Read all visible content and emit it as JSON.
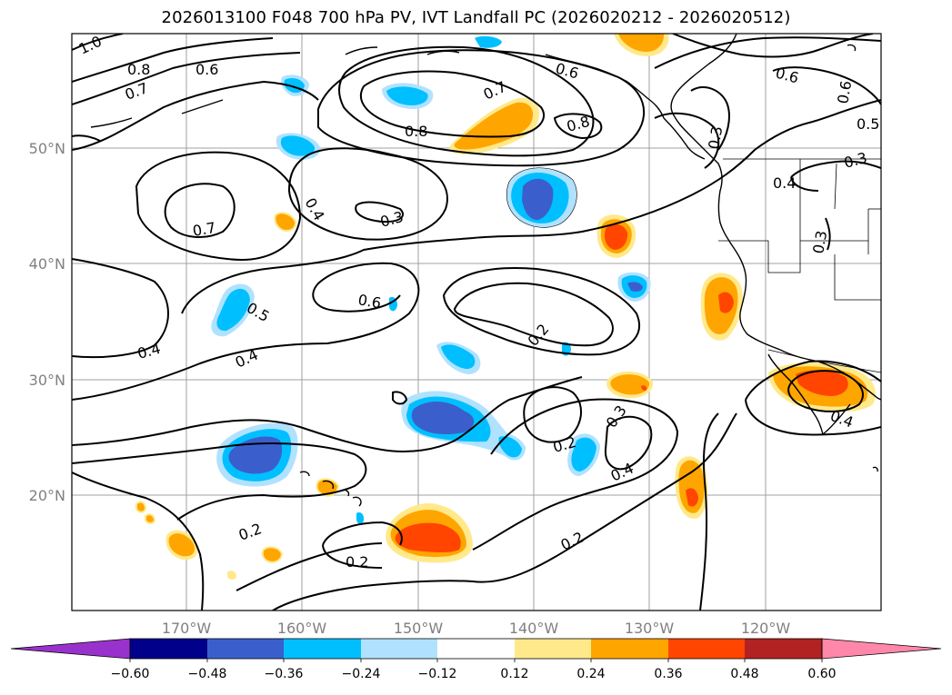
{
  "title": "2026013100 F048 700 hPa PV, IVT Landfall PC (2026020212 - 2026020512)",
  "lat_labels": [
    "50°N",
    "40°N",
    "30°N",
    "20°N"
  ],
  "lon_labels": [
    "170°W",
    "160°W",
    "150°W",
    "140°W",
    "130°W",
    "120°W"
  ],
  "contour_labels": [
    "1.0",
    "0.8",
    "0.6",
    "0.7",
    "0.8",
    "0.7",
    "0.6",
    "0.8",
    "0.6",
    "0.6",
    "0.5",
    "0.3",
    "0.4",
    "0.3",
    "0.3",
    "0.7",
    "0.4",
    "0.3",
    "0.6",
    "0.5",
    "0.4",
    "0.4",
    "0.2",
    "0.3",
    "0.2",
    "0.4",
    "0.2",
    "0.2",
    "0.2",
    "0.4"
  ],
  "colorbar": {
    "ticks": [
      "−0.60",
      "−0.48",
      "−0.36",
      "−0.24",
      "−0.12",
      "0.12",
      "0.24",
      "0.36",
      "0.48",
      "0.60"
    ],
    "colors": [
      "#9932cc",
      "#00008b",
      "#3a5fcd",
      "#00bfff",
      "#b0e2ff",
      "#ffffff",
      "#ffe98a",
      "#ffa500",
      "#ff4500",
      "#b22222",
      "#ff88aa"
    ]
  }
}
